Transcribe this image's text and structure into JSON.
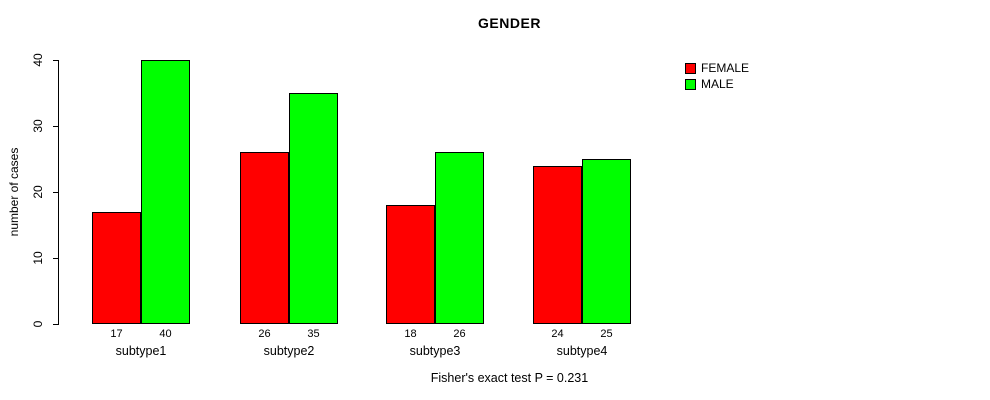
{
  "chart_data": {
    "type": "bar",
    "title": "GENDER",
    "ylabel": "number of cases",
    "xlabel": "",
    "caption": "Fisher's exact test P = 0.231",
    "categories": [
      "subtype1",
      "subtype2",
      "subtype3",
      "subtype4"
    ],
    "series": [
      {
        "name": "FEMALE",
        "color": "#ff0000",
        "values": [
          17,
          26,
          18,
          24
        ]
      },
      {
        "name": "MALE",
        "color": "#00ff00",
        "values": [
          40,
          35,
          26,
          25
        ]
      }
    ],
    "yticks": [
      0,
      10,
      20,
      30,
      40
    ],
    "ylim": [
      0,
      40
    ],
    "grid": false,
    "legend_position": "topright",
    "bar_border_color": "#000000",
    "show_value_labels": true
  }
}
